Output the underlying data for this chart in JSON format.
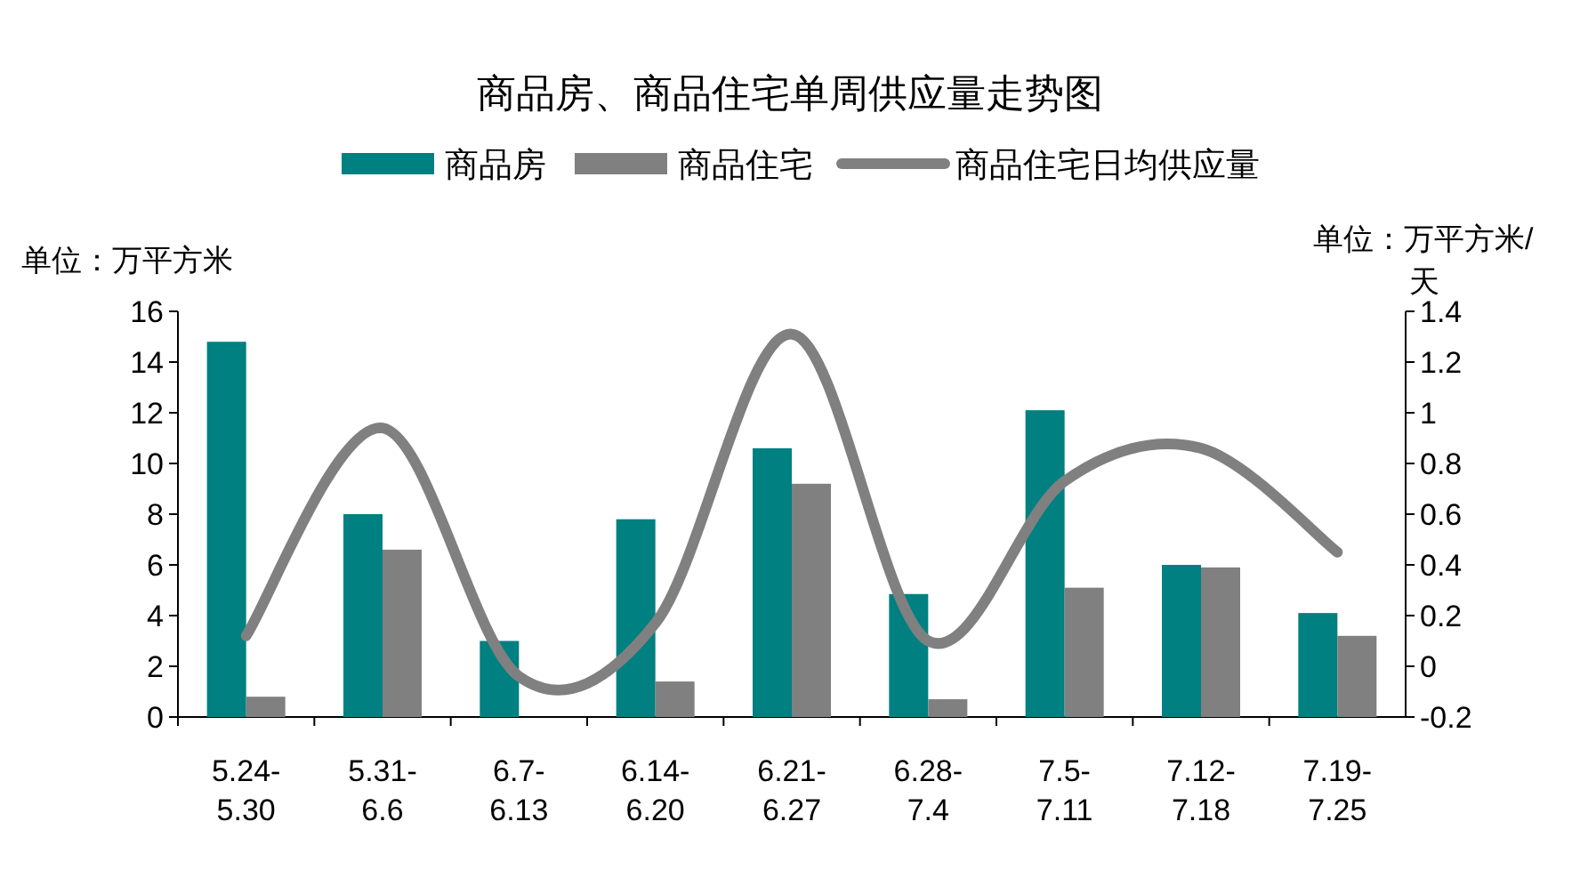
{
  "chart_data": {
    "type": "bar",
    "title": "商品房、商品住宅单周供应量走势图",
    "categories": [
      "5.24-\n5.30",
      "5.31-\n6.6",
      "6.7-\n6.13",
      "6.14-\n6.20",
      "6.21-\n6.27",
      "6.28-\n7.4",
      "7.5-\n7.11",
      "7.12-\n7.18",
      "7.19-\n7.25"
    ],
    "series": [
      {
        "name": "商品房",
        "color": "#008080",
        "values": [
          14.8,
          8.0,
          3.0,
          7.8,
          10.6,
          4.85,
          12.1,
          6.0,
          4.1
        ]
      },
      {
        "name": "商品住宅",
        "color": "#808080",
        "values": [
          0.8,
          6.6,
          0,
          1.4,
          9.2,
          0.7,
          5.1,
          5.9,
          3.2
        ]
      },
      {
        "name": "商品住宅日均供应量",
        "type": "line",
        "axis": "y2",
        "color": "#808080",
        "values": [
          0.12,
          0.94,
          -0.04,
          0.17,
          1.31,
          0.1,
          0.73,
          0.86,
          0.45
        ]
      }
    ],
    "ylabel": "单位：万平方米",
    "y2label": "单位：万平方米/天",
    "ylim": [
      0,
      16
    ],
    "yticks": [
      0,
      2,
      4,
      6,
      8,
      10,
      12,
      14,
      16
    ],
    "y2lim": [
      -0.2,
      1.4
    ],
    "y2ticks": [
      -0.2,
      0,
      0.2,
      0.4,
      0.6,
      0.8,
      1,
      1.2,
      1.4
    ],
    "grid": false,
    "legend": "top"
  }
}
